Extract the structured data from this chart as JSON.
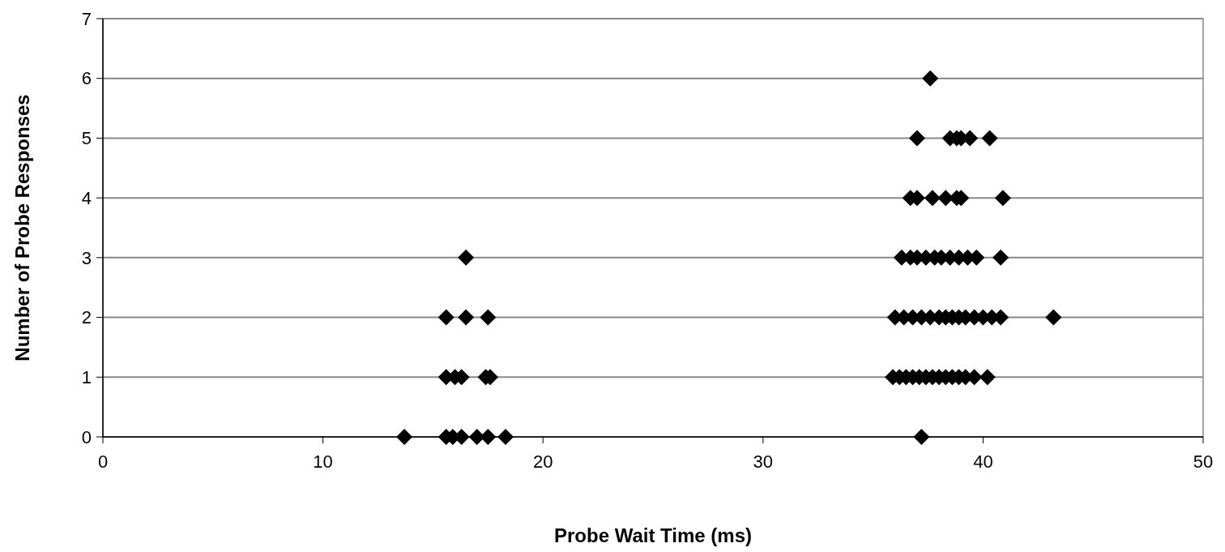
{
  "chart_data": {
    "type": "scatter",
    "xlabel": "Probe Wait Time (ms)",
    "ylabel": "Number of Probe Responses",
    "xlim": [
      0,
      50
    ],
    "xticks": [
      0,
      10,
      20,
      30,
      40,
      50
    ],
    "ylim": [
      0,
      7
    ],
    "yticks": [
      0,
      1,
      2,
      3,
      4,
      5,
      6,
      7
    ],
    "grid": "y",
    "marker": "diamond",
    "series": [
      {
        "color": "#000000",
        "x": [
          16.5,
          15.6,
          16.5,
          17.5,
          15.6,
          16.0,
          16.3,
          17.4,
          17.6,
          13.7,
          15.6,
          15.9,
          16.3,
          17.0,
          17.5,
          18.3,
          37.6,
          37.0,
          38.5,
          38.8,
          39.0,
          39.4,
          40.3,
          36.7,
          37.0,
          37.7,
          38.3,
          38.8,
          39.0,
          40.9,
          36.3,
          36.7,
          37.0,
          37.4,
          37.8,
          38.1,
          38.5,
          38.9,
          39.3,
          39.7,
          40.8,
          36.0,
          36.4,
          36.8,
          37.2,
          37.6,
          38.0,
          38.3,
          38.6,
          38.9,
          39.2,
          39.6,
          40.0,
          40.4,
          40.8,
          43.2,
          35.9,
          36.2,
          36.5,
          36.8,
          37.1,
          37.4,
          37.7,
          38.0,
          38.3,
          38.6,
          38.9,
          39.2,
          39.6,
          40.2,
          37.2
        ],
        "values": [
          3,
          2,
          2,
          2,
          1,
          1,
          1,
          1,
          1,
          0,
          0,
          0,
          0,
          0,
          0,
          0,
          6,
          5,
          5,
          5,
          5,
          5,
          5,
          4,
          4,
          4,
          4,
          4,
          4,
          4,
          3,
          3,
          3,
          3,
          3,
          3,
          3,
          3,
          3,
          3,
          3,
          2,
          2,
          2,
          2,
          2,
          2,
          2,
          2,
          2,
          2,
          2,
          2,
          2,
          2,
          2,
          1,
          1,
          1,
          1,
          1,
          1,
          1,
          1,
          1,
          1,
          1,
          1,
          1,
          1,
          0
        ]
      }
    ]
  }
}
